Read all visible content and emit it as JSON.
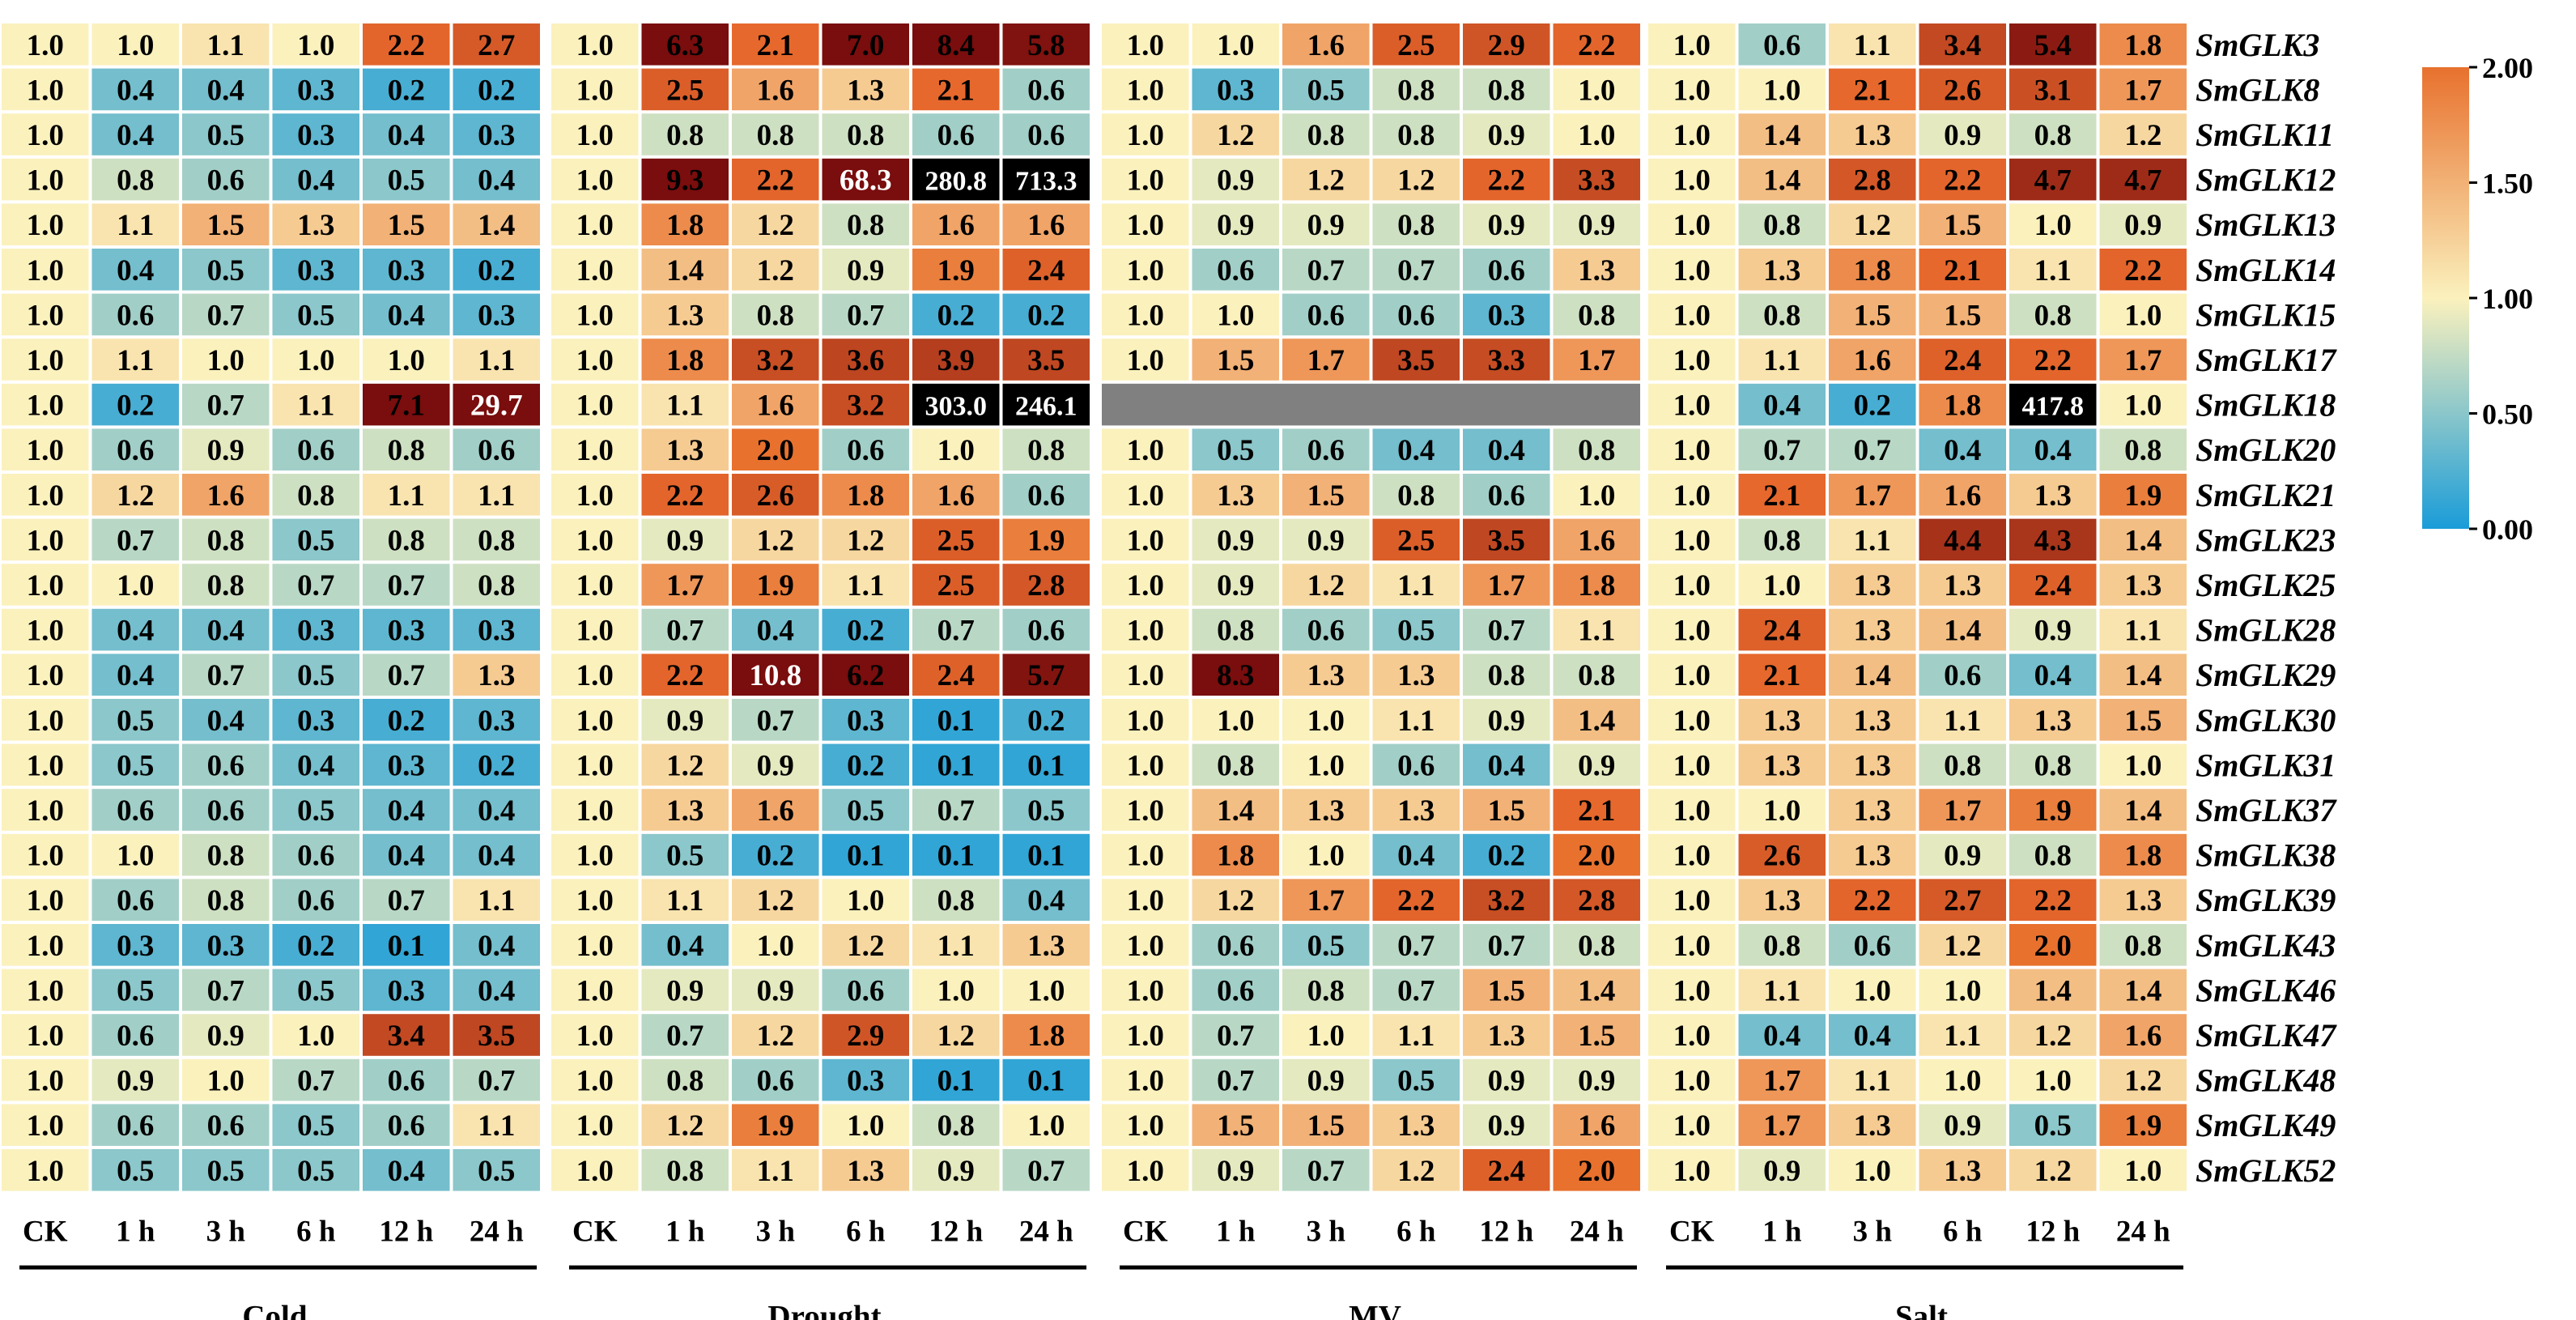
{
  "chart_data": {
    "type": "heatmap",
    "conditions": [
      "Cold",
      "Drought",
      "MV",
      "Salt"
    ],
    "timepoints": [
      "CK",
      "1 h",
      "3 h",
      "6 h",
      "12 h",
      "24 h"
    ],
    "genes": [
      "SmGLK3",
      "SmGLK8",
      "SmGLK11",
      "SmGLK12",
      "SmGLK13",
      "SmGLK14",
      "SmGLK15",
      "SmGLK17",
      "SmGLK18",
      "SmGLK20",
      "SmGLK21",
      "SmGLK23",
      "SmGLK25",
      "SmGLK28",
      "SmGLK29",
      "SmGLK30",
      "SmGLK31",
      "SmGLK37",
      "SmGLK38",
      "SmGLK39",
      "SmGLK43",
      "SmGLK46",
      "SmGLK47",
      "SmGLK48",
      "SmGLK49",
      "SmGLK52"
    ],
    "values": [
      [
        "1.0",
        "1.0",
        "1.1",
        "1.0",
        "2.2",
        "2.7",
        "1.0",
        "6.3",
        "2.1",
        "7.0",
        "8.4",
        "5.8",
        "1.0",
        "1.0",
        "1.6",
        "2.5",
        "2.9",
        "2.2",
        "1.0",
        "0.6",
        "1.1",
        "3.4",
        "5.4",
        "1.8"
      ],
      [
        "1.0",
        "0.4",
        "0.4",
        "0.3",
        "0.2",
        "0.2",
        "1.0",
        "2.5",
        "1.6",
        "1.3",
        "2.1",
        "0.6",
        "1.0",
        "0.3",
        "0.5",
        "0.8",
        "0.8",
        "1.0",
        "1.0",
        "1.0",
        "2.1",
        "2.6",
        "3.1",
        "1.7"
      ],
      [
        "1.0",
        "0.4",
        "0.5",
        "0.3",
        "0.4",
        "0.3",
        "1.0",
        "0.8",
        "0.8",
        "0.8",
        "0.6",
        "0.6",
        "1.0",
        "1.2",
        "0.8",
        "0.8",
        "0.9",
        "1.0",
        "1.0",
        "1.4",
        "1.3",
        "0.9",
        "0.8",
        "1.2"
      ],
      [
        "1.0",
        "0.8",
        "0.6",
        "0.4",
        "0.5",
        "0.4",
        "1.0",
        "9.3",
        "2.2",
        "68.3",
        "280.8",
        "713.3",
        "1.0",
        "0.9",
        "1.2",
        "1.2",
        "2.2",
        "3.3",
        "1.0",
        "1.4",
        "2.8",
        "2.2",
        "4.7",
        "4.7"
      ],
      [
        "1.0",
        "1.1",
        "1.5",
        "1.3",
        "1.5",
        "1.4",
        "1.0",
        "1.8",
        "1.2",
        "0.8",
        "1.6",
        "1.6",
        "1.0",
        "0.9",
        "0.9",
        "0.8",
        "0.9",
        "0.9",
        "1.0",
        "0.8",
        "1.2",
        "1.5",
        "1.0",
        "0.9"
      ],
      [
        "1.0",
        "0.4",
        "0.5",
        "0.3",
        "0.3",
        "0.2",
        "1.0",
        "1.4",
        "1.2",
        "0.9",
        "1.9",
        "2.4",
        "1.0",
        "0.6",
        "0.7",
        "0.7",
        "0.6",
        "1.3",
        "1.0",
        "1.3",
        "1.8",
        "2.1",
        "1.1",
        "2.2"
      ],
      [
        "1.0",
        "0.6",
        "0.7",
        "0.5",
        "0.4",
        "0.3",
        "1.0",
        "1.3",
        "0.8",
        "0.7",
        "0.2",
        "0.2",
        "1.0",
        "1.0",
        "0.6",
        "0.6",
        "0.3",
        "0.8",
        "1.0",
        "0.8",
        "1.5",
        "1.5",
        "0.8",
        "1.0"
      ],
      [
        "1.0",
        "1.1",
        "1.0",
        "1.0",
        "1.0",
        "1.1",
        "1.0",
        "1.8",
        "3.2",
        "3.6",
        "3.9",
        "3.5",
        "1.0",
        "1.5",
        "1.7",
        "3.5",
        "3.3",
        "1.7",
        "1.0",
        "1.1",
        "1.6",
        "2.4",
        "2.2",
        "1.7"
      ],
      [
        "1.0",
        "0.2",
        "0.7",
        "1.1",
        "7.1",
        "29.7",
        "1.0",
        "1.1",
        "1.6",
        "3.2",
        "303.0",
        "246.1",
        null,
        null,
        null,
        null,
        null,
        null,
        "1.0",
        "0.4",
        "0.2",
        "1.8",
        "417.8",
        "1.0"
      ],
      [
        "1.0",
        "0.6",
        "0.9",
        "0.6",
        "0.8",
        "0.6",
        "1.0",
        "1.3",
        "2.0",
        "0.6",
        "1.0",
        "0.8",
        "1.0",
        "0.5",
        "0.6",
        "0.4",
        "0.4",
        "0.8",
        "1.0",
        "0.7",
        "0.7",
        "0.4",
        "0.4",
        "0.8"
      ],
      [
        "1.0",
        "1.2",
        "1.6",
        "0.8",
        "1.1",
        "1.1",
        "1.0",
        "2.2",
        "2.6",
        "1.8",
        "1.6",
        "0.6",
        "1.0",
        "1.3",
        "1.5",
        "0.8",
        "0.6",
        "1.0",
        "1.0",
        "2.1",
        "1.7",
        "1.6",
        "1.3",
        "1.9"
      ],
      [
        "1.0",
        "0.7",
        "0.8",
        "0.5",
        "0.8",
        "0.8",
        "1.0",
        "0.9",
        "1.2",
        "1.2",
        "2.5",
        "1.9",
        "1.0",
        "0.9",
        "0.9",
        "2.5",
        "3.5",
        "1.6",
        "1.0",
        "0.8",
        "1.1",
        "4.4",
        "4.3",
        "1.4"
      ],
      [
        "1.0",
        "1.0",
        "0.8",
        "0.7",
        "0.7",
        "0.8",
        "1.0",
        "1.7",
        "1.9",
        "1.1",
        "2.5",
        "2.8",
        "1.0",
        "0.9",
        "1.2",
        "1.1",
        "1.7",
        "1.8",
        "1.0",
        "1.0",
        "1.3",
        "1.3",
        "2.4",
        "1.3"
      ],
      [
        "1.0",
        "0.4",
        "0.4",
        "0.3",
        "0.3",
        "0.3",
        "1.0",
        "0.7",
        "0.4",
        "0.2",
        "0.7",
        "0.6",
        "1.0",
        "0.8",
        "0.6",
        "0.5",
        "0.7",
        "1.1",
        "1.0",
        "2.4",
        "1.3",
        "1.4",
        "0.9",
        "1.1"
      ],
      [
        "1.0",
        "0.4",
        "0.7",
        "0.5",
        "0.7",
        "1.3",
        "1.0",
        "2.2",
        "10.8",
        "6.2",
        "2.4",
        "5.7",
        "1.0",
        "8.3",
        "1.3",
        "1.3",
        "0.8",
        "0.8",
        "1.0",
        "2.1",
        "1.4",
        "0.6",
        "0.4",
        "1.4"
      ],
      [
        "1.0",
        "0.5",
        "0.4",
        "0.3",
        "0.2",
        "0.3",
        "1.0",
        "0.9",
        "0.7",
        "0.3",
        "0.1",
        "0.2",
        "1.0",
        "1.0",
        "1.0",
        "1.1",
        "0.9",
        "1.4",
        "1.0",
        "1.3",
        "1.3",
        "1.1",
        "1.3",
        "1.5"
      ],
      [
        "1.0",
        "0.5",
        "0.6",
        "0.4",
        "0.3",
        "0.2",
        "1.0",
        "1.2",
        "0.9",
        "0.2",
        "0.1",
        "0.1",
        "1.0",
        "0.8",
        "1.0",
        "0.6",
        "0.4",
        "0.9",
        "1.0",
        "1.3",
        "1.3",
        "0.8",
        "0.8",
        "1.0"
      ],
      [
        "1.0",
        "0.6",
        "0.6",
        "0.5",
        "0.4",
        "0.4",
        "1.0",
        "1.3",
        "1.6",
        "0.5",
        "0.7",
        "0.5",
        "1.0",
        "1.4",
        "1.3",
        "1.3",
        "1.5",
        "2.1",
        "1.0",
        "1.0",
        "1.3",
        "1.7",
        "1.9",
        "1.4"
      ],
      [
        "1.0",
        "1.0",
        "0.8",
        "0.6",
        "0.4",
        "0.4",
        "1.0",
        "0.5",
        "0.2",
        "0.1",
        "0.1",
        "0.1",
        "1.0",
        "1.8",
        "1.0",
        "0.4",
        "0.2",
        "2.0",
        "1.0",
        "2.6",
        "1.3",
        "0.9",
        "0.8",
        "1.8"
      ],
      [
        "1.0",
        "0.6",
        "0.8",
        "0.6",
        "0.7",
        "1.1",
        "1.0",
        "1.1",
        "1.2",
        "1.0",
        "0.8",
        "0.4",
        "1.0",
        "1.2",
        "1.7",
        "2.2",
        "3.2",
        "2.8",
        "1.0",
        "1.3",
        "2.2",
        "2.7",
        "2.2",
        "1.3"
      ],
      [
        "1.0",
        "0.3",
        "0.3",
        "0.2",
        "0.1",
        "0.4",
        "1.0",
        "0.4",
        "1.0",
        "1.2",
        "1.1",
        "1.3",
        "1.0",
        "0.6",
        "0.5",
        "0.7",
        "0.7",
        "0.8",
        "1.0",
        "0.8",
        "0.6",
        "1.2",
        "2.0",
        "0.8"
      ],
      [
        "1.0",
        "0.5",
        "0.7",
        "0.5",
        "0.3",
        "0.4",
        "1.0",
        "0.9",
        "0.9",
        "0.6",
        "1.0",
        "1.0",
        "1.0",
        "0.6",
        "0.8",
        "0.7",
        "1.5",
        "1.4",
        "1.0",
        "1.1",
        "1.0",
        "1.0",
        "1.4",
        "1.4"
      ],
      [
        "1.0",
        "0.6",
        "0.9",
        "1.0",
        "3.4",
        "3.5",
        "1.0",
        "0.7",
        "1.2",
        "2.9",
        "1.2",
        "1.8",
        "1.0",
        "0.7",
        "1.0",
        "1.1",
        "1.3",
        "1.5",
        "1.0",
        "0.4",
        "0.4",
        "1.1",
        "1.2",
        "1.6"
      ],
      [
        "1.0",
        "0.9",
        "1.0",
        "0.7",
        "0.6",
        "0.7",
        "1.0",
        "0.8",
        "0.6",
        "0.3",
        "0.1",
        "0.1",
        "1.0",
        "0.7",
        "0.9",
        "0.5",
        "0.9",
        "0.9",
        "1.0",
        "1.7",
        "1.1",
        "1.0",
        "1.0",
        "1.2"
      ],
      [
        "1.0",
        "0.6",
        "0.6",
        "0.5",
        "0.6",
        "1.1",
        "1.0",
        "1.2",
        "1.9",
        "1.0",
        "0.8",
        "1.0",
        "1.0",
        "1.5",
        "1.5",
        "1.3",
        "0.9",
        "1.6",
        "1.0",
        "1.7",
        "1.3",
        "0.9",
        "0.5",
        "1.9"
      ],
      [
        "1.0",
        "0.5",
        "0.5",
        "0.5",
        "0.4",
        "0.5",
        "1.0",
        "0.8",
        "1.1",
        "1.3",
        "0.9",
        "0.7",
        "1.0",
        "0.9",
        "0.7",
        "1.2",
        "2.4",
        "2.0",
        "1.0",
        "0.9",
        "1.0",
        "1.3",
        "1.2",
        "1.0"
      ]
    ],
    "colorbar": {
      "ticks": [
        "2.00",
        "1.50",
        "1.00",
        "0.50",
        "0.00"
      ],
      "min": 0,
      "max": 2,
      "stops": [
        "#1a9cd8",
        "#fbf1bd",
        "#e8712e"
      ]
    },
    "highlight_colors": {
      "red": "#e01a0f",
      "dark_red": "#7a0d0d",
      "black": "#000000",
      "missing": "#808080"
    }
  }
}
